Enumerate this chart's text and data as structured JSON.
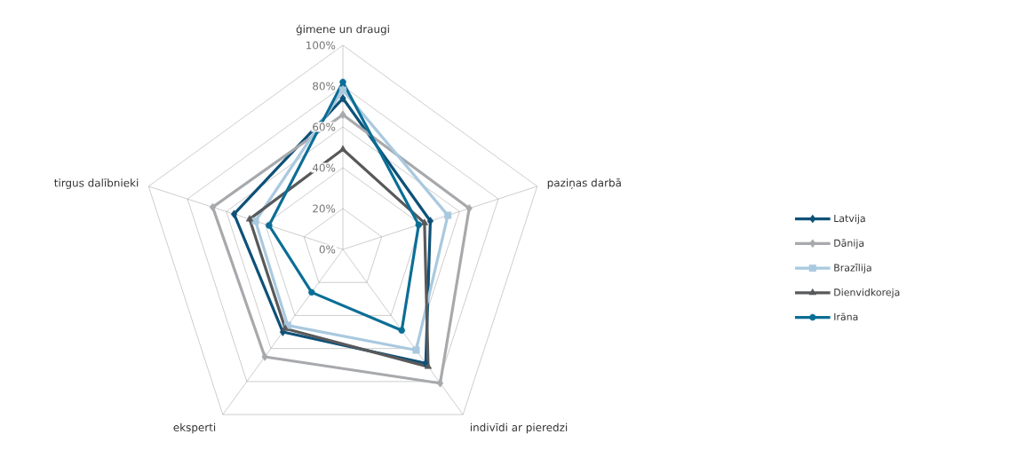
{
  "chart_data": {
    "type": "radar",
    "categories": [
      "ģimene un draugi",
      "paziņas darbā",
      "indivīdi ar pieredzi",
      "eksperti",
      "tirgus dalībnieki"
    ],
    "ylim": [
      0,
      100
    ],
    "yticks": [
      {
        "value": 0,
        "label": "0%"
      },
      {
        "value": 20,
        "label": "20%"
      },
      {
        "value": 40,
        "label": "40%"
      },
      {
        "value": 60,
        "label": "60%"
      },
      {
        "value": 80,
        "label": "80%"
      },
      {
        "value": 100,
        "label": "100%"
      }
    ],
    "grid": true,
    "legend": "right",
    "line_style": "solid",
    "series": [
      {
        "name": "Latvija",
        "color": "#0e5178",
        "marker": "diamond",
        "values": [
          74,
          45,
          69,
          50,
          56
        ]
      },
      {
        "name": "Dānija",
        "color": "#a7a9ac",
        "marker": "diamond",
        "values": [
          66,
          65,
          81,
          65,
          67
        ]
      },
      {
        "name": "Brazīlija",
        "color": "#a9c9df",
        "marker": "square",
        "values": [
          78,
          54,
          61,
          46,
          45
        ]
      },
      {
        "name": "Dienvidkoreja",
        "color": "#58595b",
        "marker": "triangle",
        "values": [
          49,
          42,
          71,
          48,
          48
        ]
      },
      {
        "name": "Irāna",
        "color": "#0b6e96",
        "marker": "circle",
        "values": [
          82,
          39,
          49,
          26,
          38
        ]
      }
    ]
  }
}
